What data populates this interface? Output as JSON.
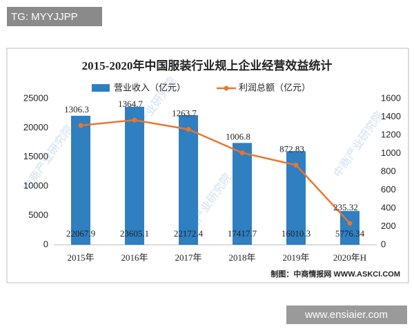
{
  "tag": "TG: MYYJJPP",
  "site_watermark": "www.ensiaier.com",
  "chart_data": {
    "type": "bar",
    "title": "2015-2020年中国服装行业规上企业经营效益统计",
    "categories": [
      "2015年",
      "2016年",
      "2017年",
      "2018年",
      "2019年",
      "2020年H"
    ],
    "series": [
      {
        "name": "营业收入（亿元）",
        "color": "#2f7fc1",
        "type": "bar",
        "values": [
          22067.9,
          23605.1,
          22172.4,
          17417.7,
          16010.3,
          5776.34
        ]
      },
      {
        "name": "利润总额（亿元）",
        "color": "#e8762d",
        "type": "line",
        "axis": "y2",
        "values": [
          1306.3,
          1364.7,
          1263.7,
          1006.8,
          872.83,
          235.32
        ]
      }
    ],
    "ylim": [
      0,
      25000
    ],
    "yticks": [
      0,
      5000,
      10000,
      15000,
      20000,
      25000
    ],
    "y2lim": [
      0,
      1600
    ],
    "y2ticks": [
      0,
      200,
      400,
      600,
      800,
      1000,
      1200,
      1400,
      1600
    ],
    "source": "制图：中商情报网 WWW.ASKCI.COM",
    "watermark": "中商产业研究院"
  }
}
